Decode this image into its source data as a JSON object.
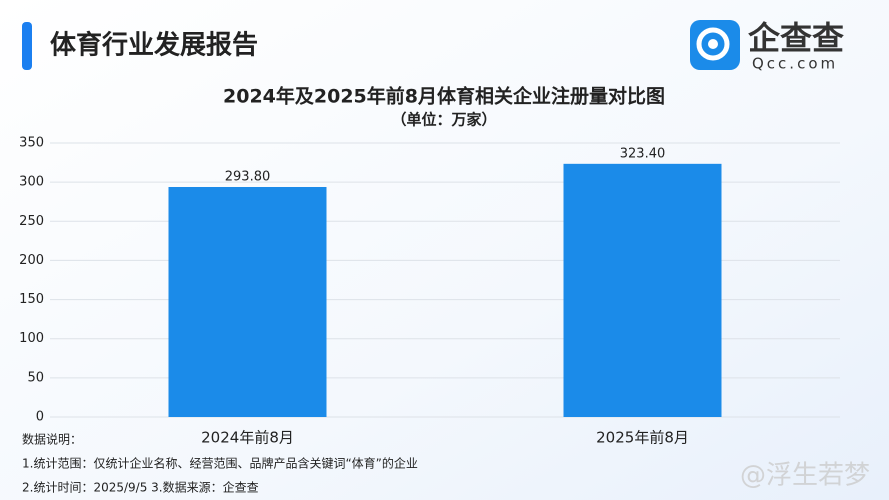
{
  "header": {
    "title": "体育行业发展报告",
    "logo_name": "企查查",
    "logo_site": "Qcc.com"
  },
  "chart_data": {
    "type": "bar",
    "title": "2024年及2025年前8月体育相关企业注册量对比图",
    "subtitle": "（单位：万家）",
    "categories": [
      "2024年前8月",
      "2025年前8月"
    ],
    "values": [
      293.8,
      323.4
    ],
    "value_labels": [
      "293.80",
      "323.40"
    ],
    "color": "#1b8be9",
    "ylim": [
      0,
      350
    ],
    "yticks": [
      0,
      50,
      100,
      150,
      200,
      250,
      300,
      350
    ],
    "grid": true
  },
  "notes": [
    "数据说明：",
    "1.统计范围：仅统计企业名称、经营范围、品牌产品含关键词“体育”的企业",
    "2.统计时间：2025/9/5  3.数据来源：企查查"
  ],
  "watermark": "@浮生若梦"
}
